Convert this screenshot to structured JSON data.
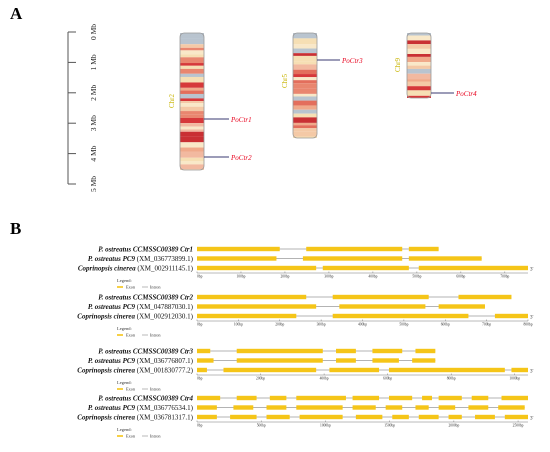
{
  "panel_a": {
    "letter": "A",
    "scale_labels": [
      "0 Mb",
      "1 Mb",
      "2 Mb",
      "3 Mb",
      "4 Mb",
      "5 Mb"
    ],
    "chromosomes": [
      {
        "name": "Chr2",
        "genes": [
          {
            "label": "PoCtr1"
          },
          {
            "label": "PoCtr2"
          }
        ]
      },
      {
        "name": "Chr5",
        "genes": [
          {
            "label": "PoCtr3"
          }
        ]
      },
      {
        "name": "Chr9",
        "genes": [
          {
            "label": "PoCtr4"
          }
        ]
      }
    ],
    "colors": {
      "gene_label": "#e8001c",
      "chrom_name": "#c8b400",
      "band_dark": "#d6383a",
      "band_light": "#f6dfb4",
      "outline": "#999999"
    }
  },
  "panel_b": {
    "letter": "B",
    "legend_title": "Legend:",
    "legend_exon": "Exon",
    "legend_intron": "Intron",
    "exon_color": "#f5c518",
    "intron_color": "#9a9a9a",
    "groups": [
      {
        "rows": [
          {
            "species": "P. ostreatus CCMSSC00389",
            "gene": "Ctr1"
          },
          {
            "species": "P. ostreatus PC9",
            "gene": "(XM_036773899.1)"
          },
          {
            "species": "Coprinopsis cinerea",
            "gene": "(XM_002911145.1)"
          }
        ],
        "axis_ticks": [
          "0bp",
          "100bp",
          "200bp",
          "300bp",
          "400bp",
          "500bp",
          "600bp",
          "700bp"
        ],
        "end_label": "3'"
      },
      {
        "rows": [
          {
            "species": "P. ostreatus CCMSSC00389",
            "gene": "Ctr2"
          },
          {
            "species": "P. ostreatus PC9",
            "gene": "(XM_047887030.1)"
          },
          {
            "species": "Coprinopsis cinerea",
            "gene": "(XM_002912030.1)"
          }
        ],
        "axis_ticks": [
          "0bp",
          "100bp",
          "200bp",
          "300bp",
          "400bp",
          "500bp",
          "600bp",
          "700bp",
          "800bp"
        ],
        "end_label": "3'"
      },
      {
        "rows": [
          {
            "species": "P. ostreatus CCMSSC00389",
            "gene": "Ctr3"
          },
          {
            "species": "P. ostreatus PC9",
            "gene": "(XM_036776807.1)"
          },
          {
            "species": "Coprinopsis cinerea",
            "gene": "(XM_001830777.2)"
          }
        ],
        "axis_ticks": [
          "0bp",
          "200bp",
          "400bp",
          "600bp",
          "800bp",
          "1000bp"
        ],
        "end_label": "3'"
      },
      {
        "rows": [
          {
            "species": "P. ostreatus CCMSSC00389",
            "gene": "Ctr4"
          },
          {
            "species": "P. ostreatus PC9",
            "gene": "(XM_036776534.1)"
          },
          {
            "species": "Coprinopsis cinerea",
            "gene": "(XM_036781317.1)"
          }
        ],
        "axis_ticks": [
          "0bp",
          "500bp",
          "1000bp",
          "1500bp",
          "2000bp",
          "2500bp"
        ],
        "end_label": "3'"
      }
    ]
  }
}
